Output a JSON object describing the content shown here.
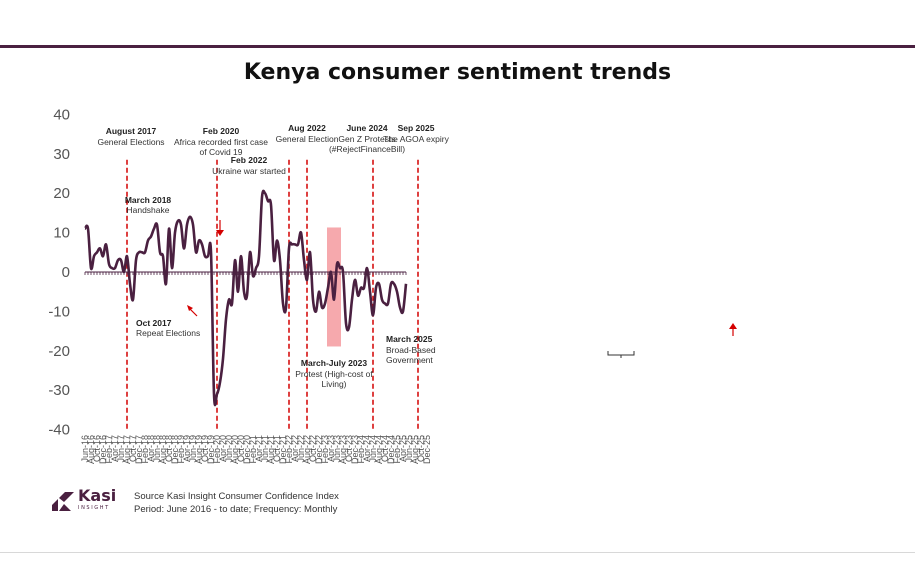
{
  "chart_data": {
    "type": "line",
    "title": "Kenya consumer sentiment trends",
    "xlabel": "",
    "ylabel": "",
    "ylim": [
      -40,
      40
    ],
    "yticks": [
      40,
      30,
      20,
      10,
      0,
      -10,
      -20,
      -30,
      -40
    ],
    "tick_labels": [
      "Jun-16",
      "Aug-16",
      "Oct-16",
      "Dec-16",
      "Feb-17",
      "Apr-17",
      "Jun-17",
      "Aug-17",
      "Oct-17",
      "Dec-17",
      "Feb-18",
      "Apr-18",
      "Jun-18",
      "Aug-18",
      "Oct-18",
      "Dec-18",
      "Feb-19",
      "Apr-19",
      "Jun-19",
      "Aug-19",
      "Oct-19",
      "Dec-19",
      "Feb-20",
      "Apr-20",
      "Jun-20",
      "Aug-20",
      "Oct-20",
      "Dec-20",
      "Feb-21",
      "Apr-21",
      "Jun-21",
      "Aug-21",
      "Oct-21",
      "Dec-21",
      "Feb-22",
      "Apr-22",
      "Jun-22",
      "Aug-22",
      "Oct-22",
      "Dec-22",
      "Feb-23",
      "Apr-23",
      "Jun-23",
      "Aug-23",
      "Oct-23",
      "Dec-23",
      "Feb-24",
      "Apr-24",
      "Jun-24",
      "Aug-24",
      "Oct-24",
      "Dec-24",
      "Feb-25",
      "Apr-25",
      "Jun-25",
      "Aug-25",
      "Oct-25",
      "Dec-25"
    ],
    "series": [
      {
        "name": "Consumer sentiment index",
        "color": "#4a2040",
        "start": "Jun-16",
        "values": [
          11,
          11,
          1,
          4,
          5,
          6,
          4,
          7,
          2,
          1,
          1,
          3,
          3,
          0,
          4,
          -3,
          -7,
          3,
          5,
          5,
          5,
          8,
          9,
          11,
          12,
          5,
          4,
          -3,
          11,
          1,
          10,
          13,
          12,
          6,
          12,
          14,
          12,
          5,
          8,
          7,
          4,
          4,
          5,
          -31,
          -31,
          -28,
          -22,
          -12,
          -7,
          -8,
          3,
          -5,
          4,
          -5,
          -6,
          5,
          -1,
          1,
          4,
          19,
          20,
          18,
          17,
          3,
          8,
          3,
          -8,
          -9,
          6,
          7,
          7,
          7,
          10,
          3,
          -2,
          5,
          -7,
          -10,
          -5,
          -9,
          -8,
          -4,
          0,
          -7,
          2,
          1,
          0,
          -13,
          -14,
          -7,
          -2,
          -6,
          -4,
          -4,
          1,
          -5,
          -11,
          -4,
          -3,
          -7,
          -8,
          -8,
          -3,
          -3,
          -5,
          -9,
          -10,
          -3
        ]
      }
    ],
    "event_lines": [
      "Aug-17",
      "Feb-20",
      "Feb-22",
      "Aug-22",
      "Jun-24",
      "Sep-25"
    ],
    "shaded_region": {
      "from": "Mar-23",
      "to": "Jul-23",
      "color": "#f6a9ad"
    }
  },
  "annotations": {
    "aug2017": {
      "title": "August 2017",
      "text": "General Elections"
    },
    "oct2017": {
      "title": "Oct 2017",
      "text": "Repeat Elections"
    },
    "mar2018": {
      "title": "March 2018",
      "text": "Handshake"
    },
    "feb2020": {
      "title": "Feb 2020",
      "line1": "Africa recorded first case",
      "line2": "of Covid 19"
    },
    "feb2022": {
      "title": "Feb 2022",
      "text": "Ukraine war started"
    },
    "aug2022": {
      "title": "Aug 2022",
      "text": "General Election"
    },
    "marjul2023": {
      "title": "March-July 2023",
      "line1": "Protest (High-cost of",
      "line2": "Living)"
    },
    "jun2024": {
      "title": "June 2024",
      "line1": "Gen Z Protests",
      "line2": "(#RejectFinanceBill)"
    },
    "mar2025": {
      "title": "March 2025",
      "line1": "Broad-Based",
      "line2": "Government"
    },
    "sep2025": {
      "title": "Sep 2025",
      "text": "The AGOA expiry"
    }
  },
  "logo": {
    "name": "Kasi",
    "sub": "INSIGHT"
  },
  "source": {
    "line1": "Source Kasi Insight Consumer Confidence Index",
    "line2": "Period: June 2016 - to date; Frequency: Monthly"
  },
  "colors": {
    "line": "#4a2040",
    "event": "#d40000",
    "shade": "#f6a9ad",
    "rule": "#4a2040"
  }
}
